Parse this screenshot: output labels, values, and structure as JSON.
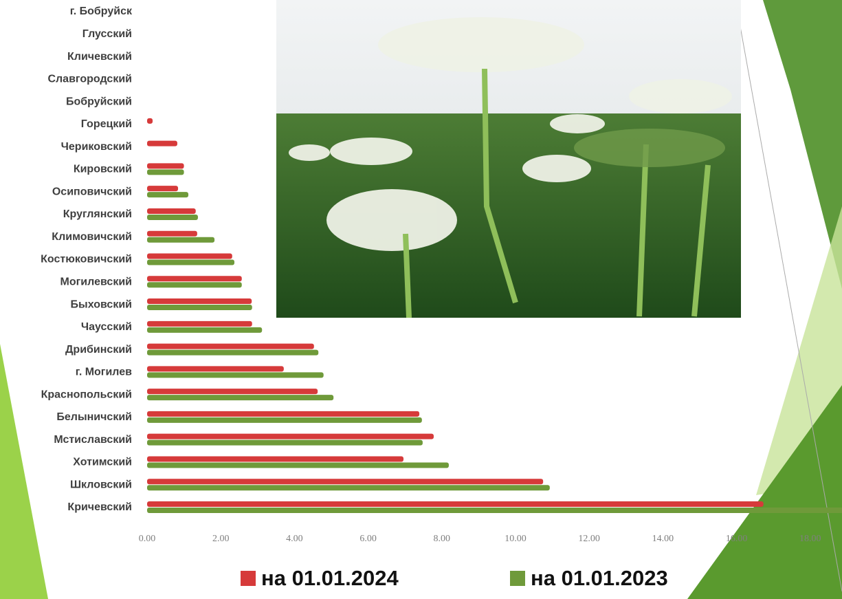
{
  "chart_data": {
    "type": "bar",
    "orientation": "horizontal",
    "categories": [
      "г. Бобруйск",
      "Глусский",
      "Кличевский",
      "Славгородский",
      "Бобруйский",
      "Горецкий",
      "Чериковский",
      "Кировский",
      "Осиповичский",
      "Круглянский",
      "Климовичский",
      "Костюковичский",
      "Могилевский",
      "Быховский",
      "Чаусский",
      "Дрибинский",
      "г. Могилев",
      "Краснопольский",
      "Белыничский",
      "Мстиславский",
      "Хотимский",
      "Шкловский",
      "Кричевский"
    ],
    "series": [
      {
        "name": "на 01.01.2024",
        "color": "#d63a3a",
        "values": [
          0,
          0,
          0,
          0,
          0,
          0.15,
          0.82,
          1.0,
          0.84,
          1.32,
          1.36,
          2.31,
          2.57,
          2.84,
          2.85,
          4.53,
          3.71,
          4.63,
          7.39,
          7.78,
          6.96,
          10.75,
          16.73
        ]
      },
      {
        "name": "на 01.01.2023",
        "color": "#6f9a3a",
        "values": [
          0,
          0,
          0,
          0,
          0,
          0,
          0,
          1.0,
          1.12,
          1.38,
          1.83,
          2.37,
          2.57,
          2.85,
          3.12,
          4.65,
          4.79,
          5.06,
          7.46,
          7.48,
          8.19,
          10.93,
          18.9
        ]
      }
    ],
    "xlim": [
      0,
      18.9
    ],
    "xticks": [
      {
        "value": 0,
        "label": "0.00"
      },
      {
        "value": 2,
        "label": "2.00"
      },
      {
        "value": 4,
        "label": "4.00"
      },
      {
        "value": 6,
        "label": "6.00"
      },
      {
        "value": 8,
        "label": "8.00"
      },
      {
        "value": 10,
        "label": "10.00"
      },
      {
        "value": 12,
        "label": "12.00"
      },
      {
        "value": 14,
        "label": "14.00"
      },
      {
        "value": 16,
        "label": "16.00"
      },
      {
        "value": 18,
        "label": "18.00"
      }
    ],
    "grid": false,
    "legend": "bottom"
  }
}
